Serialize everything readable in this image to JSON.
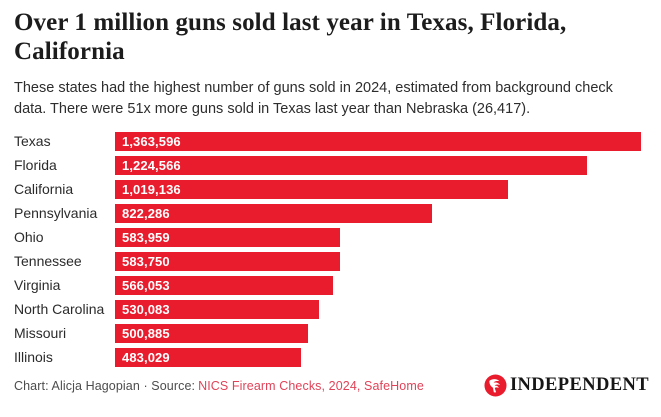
{
  "header": {
    "title": "Over 1 million guns sold last year in Texas, Florida, California",
    "subtitle": "These states had the highest number of guns sold in 2024, estimated from background check data. There were 51x more guns sold in Texas last year than Nebraska (26,417)."
  },
  "chart_data": {
    "type": "bar",
    "orientation": "horizontal",
    "title": "Over 1 million guns sold last year in Texas, Florida, California",
    "subtitle": "These states had the highest number of guns sold in 2024, estimated from background check data. There were 51x more guns sold in Texas last year than Nebraska (26,417).",
    "categories": [
      "Texas",
      "Florida",
      "California",
      "Pennsylvania",
      "Ohio",
      "Tennessee",
      "Virginia",
      "North Carolina",
      "Missouri",
      "Illinois"
    ],
    "values": [
      1363596,
      1224566,
      1019136,
      822286,
      583959,
      583750,
      566053,
      530083,
      500885,
      483029
    ],
    "value_labels": [
      "1,363,596",
      "1,224,566",
      "1,019,136",
      "822,286",
      "583,959",
      "583,750",
      "566,053",
      "530,083",
      "500,885",
      "483,029"
    ],
    "xlim": [
      0,
      1363596
    ],
    "bar_color": "#e81c2d",
    "value_label_color": "#ffffff",
    "grid": false,
    "legend": false,
    "axis_ticks": "none (values labeled inside bars)"
  },
  "footer": {
    "credit_prefix": "Chart: Alicja Hagopian · Source:",
    "source_link": "NICS Firearm Checks, 2024, SafeHome"
  },
  "logo": {
    "brand": "INDEPENDENT",
    "icon": "eagle-icon",
    "circle_color": "#e81c2d"
  },
  "colors": {
    "bar": "#e81c2d",
    "link": "#e04358",
    "title_text": "#1c1c1c",
    "body_text": "#2d2d2d",
    "credit_text": "#4d4d4d"
  }
}
